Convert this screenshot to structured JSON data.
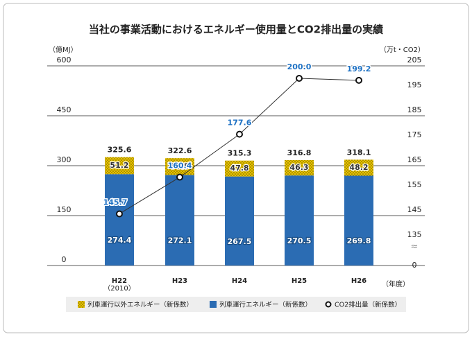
{
  "chart_data": {
    "type": "bar",
    "title": "当社の事業活動におけるエネルギー使用量とCO2排出量の実績",
    "y_label": "（億MJ）",
    "y2_label": "（万t・CO2）",
    "x_label": "（年度）",
    "categories": [
      "H22",
      "H23",
      "H24",
      "H25",
      "H26"
    ],
    "category_sublabels": [
      "（2010）",
      null,
      null,
      null,
      null
    ],
    "stacked": true,
    "series": [
      {
        "name": "列車運行エネルギー（新係数）",
        "color": "#2b6cb3",
        "values": [
          274.4,
          272.1,
          267.5,
          270.5,
          269.8
        ]
      },
      {
        "name": "列車運行以外エネルギー（新係数）",
        "color": "#e8c300",
        "values": [
          51.2,
          50.5,
          47.8,
          46.3,
          48.2
        ]
      },
      {
        "name": "CO2排出量（新係数）",
        "type": "line",
        "axis": "y2",
        "color": "#333333",
        "label_color": "#1f72c4",
        "values": [
          145.7,
          160.4,
          177.6,
          200.0,
          199.2
        ],
        "value_labels": [
          "145.7",
          "160.4",
          "177.6",
          "200.0",
          "199.2"
        ]
      }
    ],
    "totals": [
      325.6,
      322.6,
      315.3,
      316.8,
      318.1
    ],
    "ylim": [
      0,
      600
    ],
    "yticks": [
      0,
      150,
      300,
      450,
      600
    ],
    "y2lim": [
      125,
      205
    ],
    "y2ticks": [
      135,
      145,
      155,
      165,
      175,
      185,
      195,
      205
    ],
    "y2_break_label": "0",
    "grid": true,
    "legend": "bottom"
  }
}
